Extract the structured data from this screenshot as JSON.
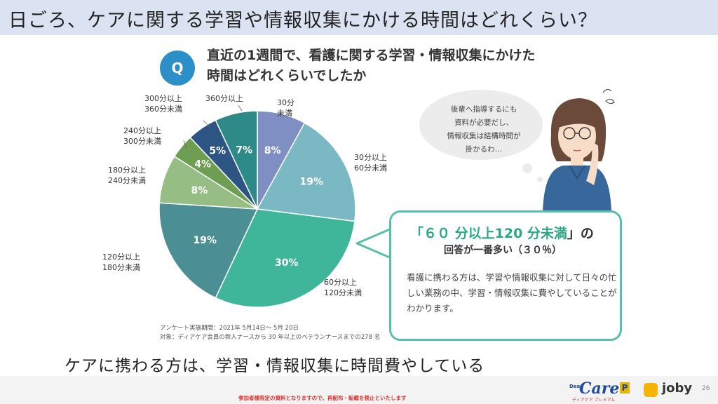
{
  "slide": {
    "title": "日ごろ、ケアに関する学習や情報収集にかける時間はどれくらい？",
    "q_badge": "Q",
    "question_line1": "直近の1週間で、看護に関する学習・情報収集にかけた",
    "question_line2": "時間はどれくらいでしたか",
    "thought_line1": "後輩へ指導するにも",
    "thought_line2": "資料が必要だし、",
    "thought_line3": "情報収集は結構時間が",
    "thought_line4": "掛かるわ…",
    "callout_open": "「",
    "callout_highlight": "６０ 分以上120 分未満",
    "callout_close": "」",
    "callout_particle": "の",
    "callout_sub": "回答が一番多い（３０％）",
    "callout_body": "看護に携わる方は、学習や情報収集に対して日々の忙しい業務の中、学習・情報収集に費やしていることがわかります。",
    "survey_period": "アンケート実施期間：2021年 5月14日～ 5月 20日",
    "survey_subject": "対象：ディアケア会員の新人ナースから 30 年以上のベテランナースまでの278 名",
    "bottom_text": "ケアに携わる方は、学習・情報収集に時間費やしている",
    "footer_notice": "参加者様限定の資料となりますので、再配布・転載を禁止といたします",
    "logo_care_dear": "Dear",
    "logo_care_text": "Care",
    "logo_care_mark": "P",
    "logo_care_sub": "ディアケア プレミアム",
    "logo_joby": "joby",
    "page_number": "26"
  },
  "colors": {
    "title_bar": "#dbe2f1",
    "q_badge": "#2d8fc8",
    "callout_border": "#58c0a8",
    "callout_highlight": "#2aa886"
  },
  "chart_data": {
    "type": "pie",
    "title": "",
    "unit": "%",
    "start_angle_deg": 0,
    "direction": "clockwise",
    "slices": [
      {
        "label_line1": "30分",
        "label_line2": "未満",
        "value": 8,
        "value_label": "8%",
        "color": "#7f8fc4"
      },
      {
        "label_line1": "30分以上",
        "label_line2": "60分未満",
        "value": 19,
        "value_label": "19%",
        "color": "#7ab8c3"
      },
      {
        "label_line1": "60分以上",
        "label_line2": "120分未満",
        "value": 30,
        "value_label": "30%",
        "color": "#3fb59a"
      },
      {
        "label_line1": "120分以上",
        "label_line2": "180分未満",
        "value": 19,
        "value_label": "19%",
        "color": "#4b8e94"
      },
      {
        "label_line1": "180分以上",
        "label_line2": "240分未満",
        "value": 8,
        "value_label": "8%",
        "color": "#95bd84"
      },
      {
        "label_line1": "240分以上",
        "label_line2": "300分未満",
        "value": 4,
        "value_label": "4%",
        "color": "#6d9e51"
      },
      {
        "label_line1": "300分以上",
        "label_line2": "360分未満",
        "value": 5,
        "value_label": "5%",
        "color": "#2c5584"
      },
      {
        "label_line1": "360分以上",
        "label_line2": "",
        "value": 7,
        "value_label": "7%",
        "color": "#2e8a86"
      }
    ]
  }
}
